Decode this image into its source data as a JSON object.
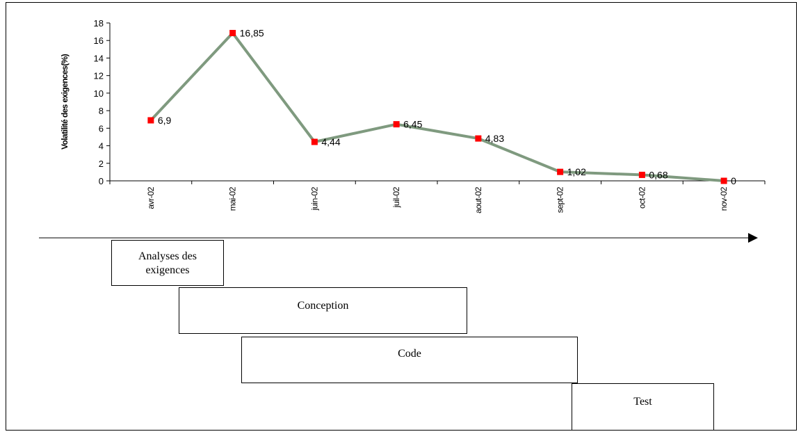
{
  "chart_data": {
    "type": "line",
    "title": "",
    "xlabel": "",
    "ylabel": "Volatilité des exigences(%)",
    "categories": [
      "avr-02",
      "mai-02",
      "juin-02",
      "juil-02",
      "aout-02",
      "sept-02",
      "oct-02",
      "nov-02"
    ],
    "series": [
      {
        "values": [
          6.9,
          16.85,
          4.44,
          6.45,
          4.83,
          1.02,
          0.68,
          0
        ],
        "labels": [
          "6,9",
          "16,85",
          "4,44",
          "6,45",
          "4,83",
          "1,02",
          "0,68",
          "0"
        ]
      }
    ],
    "ylim": [
      0,
      18
    ],
    "yticks": [
      "0",
      "2",
      "4",
      "6",
      "8",
      "10",
      "12",
      "14",
      "16",
      "18"
    ],
    "grid": false,
    "legend": "none",
    "colors": {
      "line": "#7f9a7f",
      "marker": "#ff0000",
      "axis": "#000000"
    }
  },
  "phases": [
    {
      "label_line1": "Analyses des",
      "label_line2": "exigences"
    },
    {
      "label": "Conception"
    },
    {
      "label": "Code"
    },
    {
      "label": "Test"
    }
  ]
}
